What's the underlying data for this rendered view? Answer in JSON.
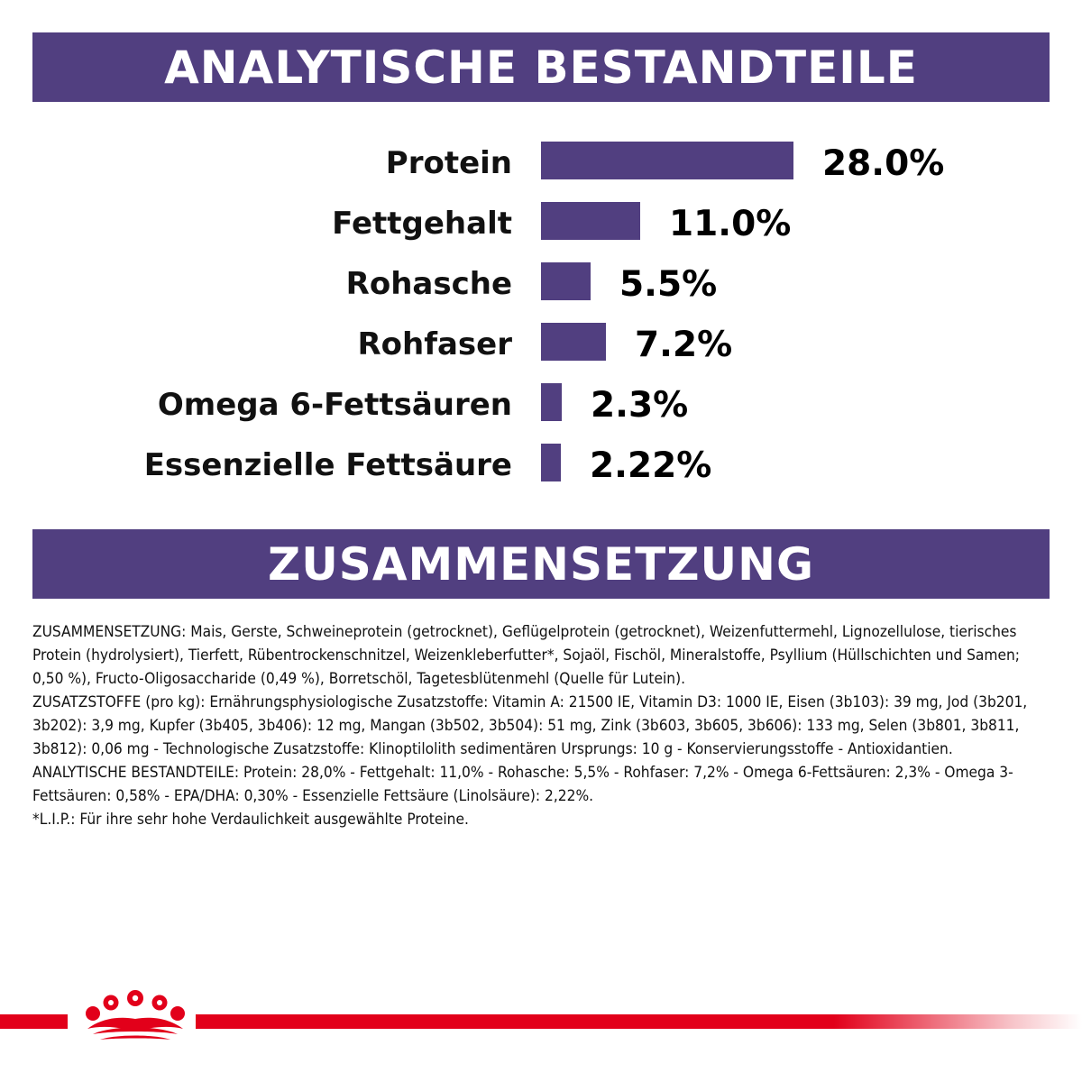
{
  "colors": {
    "brand_purple": "#513f80",
    "brand_red": "#e2001a",
    "bar_color": "#513f80"
  },
  "section1": {
    "title": "ANALYTISCHE BESTANDTEILE"
  },
  "section2": {
    "title": "ZUSAMMENSETZUNG"
  },
  "chart_data": {
    "type": "bar",
    "orientation": "horizontal",
    "title": "ANALYTISCHE BESTANDTEILE",
    "categories": [
      "Protein",
      "Fettgehalt",
      "Rohasche",
      "Rohfaser",
      "Omega 6-Fettsäuren",
      "Essenzielle Fettsäure"
    ],
    "values": [
      28.0,
      11.0,
      5.5,
      7.2,
      2.3,
      2.22
    ],
    "value_labels": [
      "28.0%",
      "11.0%",
      "5.5%",
      "7.2%",
      "2.3%",
      "2.22%"
    ],
    "unit": "%",
    "grid": false,
    "legend": "none"
  },
  "composition_paragraphs": [
    "ZUSAMMENSETZUNG: Mais, Gerste, Schweineprotein (getrocknet), Geflügelprotein (getrocknet), Weizenfuttermehl, Lignozellulose, tierisches Protein (hydrolysiert), Tierfett, Rübentrockenschnitzel, Weizenkleberfutter*, Sojaöl, Fischöl, Mineralstoffe, Psyllium (Hüllschichten und Samen; 0,50 %), Fructo-Oligosaccharide (0,49 %), Borretschöl, Tagetesblütenmehl (Quelle für Lutein).",
    "ZUSATZSTOFFE (pro kg): Ernährungsphysiologische Zusatzstoffe: Vitamin A: 21500 IE, Vitamin D3: 1000 IE, Eisen (3b103): 39 mg, Jod (3b201, 3b202): 3,9 mg, Kupfer (3b405, 3b406): 12 mg, Mangan (3b502, 3b504): 51 mg, Zink (3b603, 3b605, 3b606): 133 mg, Selen (3b801, 3b811, 3b812): 0,06 mg - Technologische Zusatzstoffe: Klinoptilolith sedimentären Ursprungs: 10 g - Konservierungsstoffe - Antioxidantien.",
    "ANALYTISCHE BESTANDTEILE: Protein: 28,0% - Fettgehalt: 11,0% - Rohasche: 5,5% - Rohfaser: 7,2% - Omega 6-Fettsäuren: 2,3% - Omega 3-Fettsäuren: 0,58% - EPA/DHA: 0,30% - Essenzielle Fettsäure (Linolsäure): 2,22%.",
    "*L.I.P.: Für ihre sehr hohe Verdaulichkeit ausgewählte Proteine."
  ],
  "footer": {
    "logo_icon": "royal-canin-crown-icon"
  }
}
